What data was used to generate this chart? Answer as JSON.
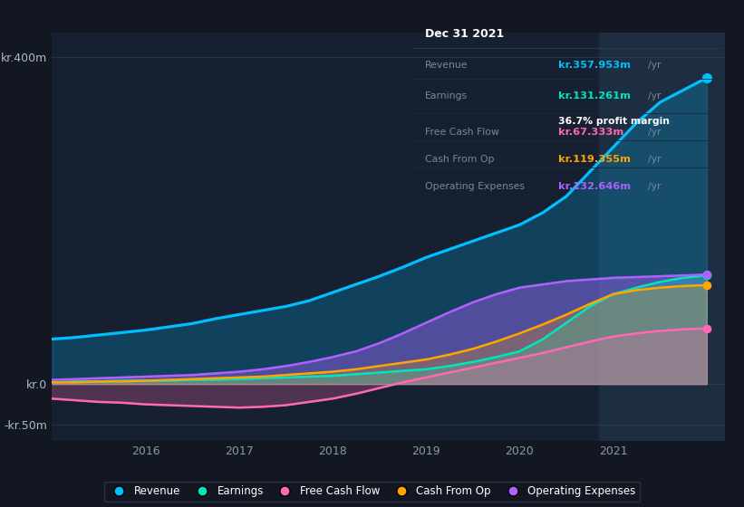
{
  "bg_color": "#131722",
  "chart_bg": "#162030",
  "x_years": [
    2015.0,
    2015.25,
    2015.5,
    2015.75,
    2016.0,
    2016.25,
    2016.5,
    2016.75,
    2017.0,
    2017.25,
    2017.5,
    2017.75,
    2018.0,
    2018.25,
    2018.5,
    2018.75,
    2019.0,
    2019.25,
    2019.5,
    2019.75,
    2020.0,
    2020.25,
    2020.5,
    2020.75,
    2021.0,
    2021.25,
    2021.5,
    2021.75,
    2022.0
  ],
  "revenue": [
    55,
    57,
    60,
    63,
    66,
    70,
    74,
    80,
    85,
    90,
    95,
    102,
    112,
    122,
    132,
    143,
    155,
    165,
    175,
    185,
    195,
    210,
    230,
    260,
    290,
    320,
    345,
    360,
    375
  ],
  "earnings": [
    2,
    3,
    3,
    4,
    4,
    4,
    5,
    5,
    6,
    7,
    8,
    9,
    10,
    12,
    14,
    16,
    18,
    22,
    27,
    33,
    40,
    55,
    75,
    95,
    110,
    118,
    125,
    130,
    133
  ],
  "free_cash_flow": [
    -18,
    -20,
    -22,
    -23,
    -25,
    -26,
    -27,
    -28,
    -29,
    -28,
    -26,
    -22,
    -18,
    -12,
    -5,
    2,
    8,
    14,
    20,
    26,
    32,
    38,
    45,
    52,
    58,
    62,
    65,
    67,
    68
  ],
  "cash_from_op": [
    2,
    2,
    3,
    3,
    4,
    5,
    6,
    7,
    8,
    9,
    11,
    13,
    15,
    18,
    22,
    26,
    30,
    36,
    43,
    52,
    62,
    73,
    85,
    98,
    110,
    115,
    118,
    120,
    121
  ],
  "operating_expenses": [
    5,
    6,
    7,
    8,
    9,
    10,
    11,
    13,
    15,
    18,
    22,
    27,
    33,
    40,
    50,
    62,
    75,
    88,
    100,
    110,
    118,
    122,
    126,
    128,
    130,
    131,
    132,
    133,
    134
  ],
  "revenue_color": "#00bfff",
  "earnings_color": "#00e5c0",
  "fcf_color": "#ff69b4",
  "cashop_color": "#ffa500",
  "opex_color": "#b060ff",
  "xlim": [
    2015.0,
    2022.2
  ],
  "ylim": [
    -70,
    430
  ],
  "yticks": [
    -50,
    0,
    400
  ],
  "ytick_labels": [
    "-kr.50m",
    "kr.0",
    "kr.400m"
  ],
  "xticks": [
    2016,
    2017,
    2018,
    2019,
    2020,
    2021
  ],
  "highlight_x_start": 2020.85,
  "highlight_x_end": 2022.2,
  "info_box": {
    "title": "Dec 31 2021",
    "rows": [
      {
        "label": "Revenue",
        "value": "kr.357.953m",
        "value_color": "#00bfff",
        "extra": null
      },
      {
        "label": "Earnings",
        "value": "kr.131.261m",
        "value_color": "#00e5c0",
        "extra": "36.7% profit margin"
      },
      {
        "label": "Free Cash Flow",
        "value": "kr.67.333m",
        "value_color": "#ff69b4",
        "extra": null
      },
      {
        "label": "Cash From Op",
        "value": "kr.119.355m",
        "value_color": "#ffa500",
        "extra": null
      },
      {
        "label": "Operating Expenses",
        "value": "kr.132.646m",
        "value_color": "#b060ff",
        "extra": null
      }
    ]
  },
  "legend_entries": [
    "Revenue",
    "Earnings",
    "Free Cash Flow",
    "Cash From Op",
    "Operating Expenses"
  ],
  "legend_colors": [
    "#00bfff",
    "#00e5c0",
    "#ff69b4",
    "#ffa500",
    "#b060ff"
  ]
}
